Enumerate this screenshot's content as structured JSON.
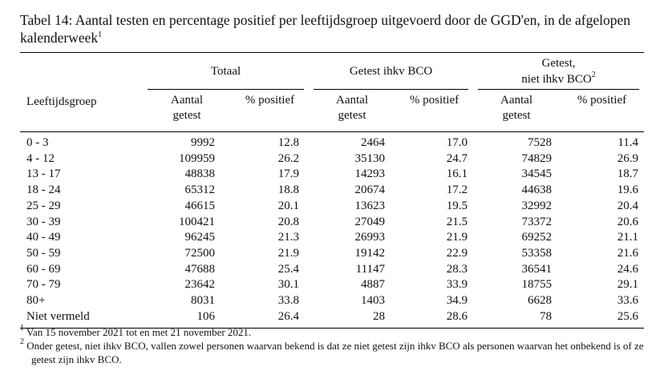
{
  "caption": {
    "text": "Tabel 14: Aantal testen en percentage positief per leeftijdsgroep uitgevoerd door de GGD'en, in de afgelopen kalenderweek",
    "mark": "1"
  },
  "header": {
    "groups": [
      {
        "text": "Totaal"
      },
      {
        "text": "Getest ihkv BCO"
      },
      {
        "line1": "Getest,",
        "line2": "niet ihkv BCO",
        "mark": "2"
      }
    ],
    "row_label": "Leeftijdsgroep",
    "columns": [
      "Aantal getest",
      "% positief",
      "Aantal getest",
      "% positief",
      "Aantal getest",
      "% positief"
    ]
  },
  "table": {
    "rows": [
      [
        "0 - 3",
        "9992",
        "12.8",
        "2464",
        "17.0",
        "7528",
        "11.4"
      ],
      [
        "4 - 12",
        "109959",
        "26.2",
        "35130",
        "24.7",
        "74829",
        "26.9"
      ],
      [
        "13 - 17",
        "48838",
        "17.9",
        "14293",
        "16.1",
        "34545",
        "18.7"
      ],
      [
        "18 - 24",
        "65312",
        "18.8",
        "20674",
        "17.2",
        "44638",
        "19.6"
      ],
      [
        "25 - 29",
        "46615",
        "20.1",
        "13623",
        "19.5",
        "32992",
        "20.4"
      ],
      [
        "30 - 39",
        "100421",
        "20.8",
        "27049",
        "21.5",
        "73372",
        "20.6"
      ],
      [
        "40 - 49",
        "96245",
        "21.3",
        "26993",
        "21.9",
        "69252",
        "21.1"
      ],
      [
        "50 - 59",
        "72500",
        "21.9",
        "19142",
        "22.9",
        "53358",
        "21.6"
      ],
      [
        "60 - 69",
        "47688",
        "25.4",
        "11147",
        "28.3",
        "36541",
        "24.6"
      ],
      [
        "70 - 79",
        "23642",
        "30.1",
        "4887",
        "33.9",
        "18755",
        "29.1"
      ],
      [
        "80+",
        "8031",
        "33.8",
        "1403",
        "34.9",
        "6628",
        "33.6"
      ],
      [
        "Niet vermeld",
        "106",
        "26.4",
        "28",
        "28.6",
        "78",
        "25.6"
      ]
    ]
  },
  "footnotes": [
    {
      "mark": "1",
      "text": "Van 15 november 2021 tot en met 21 november 2021."
    },
    {
      "mark": "2",
      "text": "Onder getest, niet ihkv BCO, vallen zowel personen waarvan bekend is dat ze niet getest zijn ihkv BCO als personen waarvan het onbekend is of ze getest zijn ihkv BCO."
    }
  ]
}
